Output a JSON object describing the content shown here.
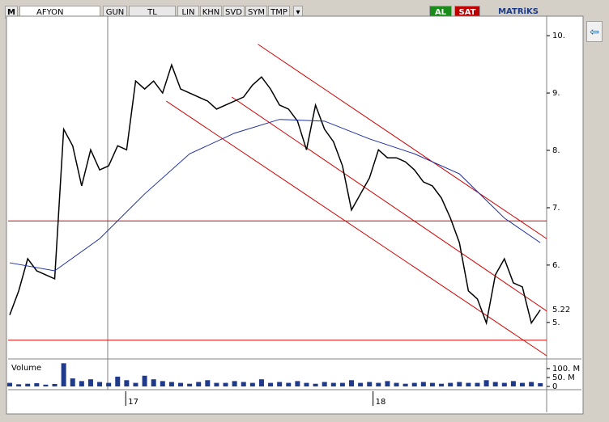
{
  "toolbar": {
    "symbol_mark": "M",
    "symbol": "AFYON",
    "period": "GUN",
    "currency": "TL",
    "buttons": [
      "LIN",
      "KHN",
      "SVD",
      "SYM",
      "TMP"
    ],
    "buy": "AL",
    "sell": "SAT",
    "brand": "MATRiKS"
  },
  "chart_data": [
    {
      "type": "line",
      "x": [
        0,
        1,
        2,
        3,
        4,
        5,
        6,
        7,
        8,
        9,
        10,
        11,
        12,
        13,
        14,
        15,
        16,
        17,
        18,
        19,
        20,
        21,
        22,
        23,
        24,
        25,
        26,
        27,
        28,
        29,
        30,
        31,
        32,
        33,
        34,
        35,
        36,
        37,
        38,
        39,
        40,
        41,
        42,
        43,
        44,
        45,
        46,
        47,
        48,
        49,
        50,
        51,
        52,
        53,
        54,
        55,
        56,
        57,
        58,
        59
      ],
      "xlim": [
        -0.18,
        59.7
      ],
      "xticks": [
        {
          "value": 12.9,
          "label": "17"
        },
        {
          "value": 40.4,
          "label": "18"
        }
      ],
      "ylim": [
        4.42,
        10.34
      ],
      "yticks": [
        {
          "value": 5,
          "label": "5."
        },
        {
          "value": 6,
          "label": "6."
        },
        {
          "value": 7,
          "label": "7."
        },
        {
          "value": 8,
          "label": "8."
        },
        {
          "value": 9,
          "label": "9."
        },
        {
          "value": 10,
          "label": "10."
        }
      ],
      "series": [
        {
          "color": "#000000",
          "values": [
            5.13,
            5.55,
            6.11,
            5.9,
            5.83,
            5.76,
            8.37,
            8.08,
            7.38,
            8.01,
            7.66,
            7.73,
            8.08,
            8.01,
            9.21,
            9.07,
            9.21,
            9.0,
            9.49,
            9.07,
            9.0,
            8.93,
            8.86,
            8.72,
            8.79,
            8.86,
            8.93,
            9.14,
            9.28,
            9.07,
            8.79,
            8.72,
            8.51,
            8.01,
            8.79,
            8.37,
            8.15,
            7.73,
            6.96,
            7.24,
            7.52,
            8.01,
            7.87,
            7.87,
            7.8,
            7.66,
            7.45,
            7.38,
            7.17,
            6.82,
            6.39,
            5.55,
            5.41,
            4.99,
            5.83,
            6.11,
            5.69,
            5.62,
            4.99,
            5.22
          ]
        },
        {
          "color": "#1f2fa0",
          "x": [
            0,
            5,
            10,
            15,
            20,
            25,
            30,
            35,
            40,
            45,
            50,
            55,
            59
          ],
          "values": [
            6.04,
            5.9,
            6.46,
            7.24,
            7.94,
            8.3,
            8.54,
            8.51,
            8.2,
            7.94,
            7.59,
            6.82,
            6.39
          ]
        }
      ],
      "hlines": [
        6.77,
        4.69
      ],
      "trend_lines": [
        {
          "x": [
            27.6,
            59.7
          ],
          "values": [
            9.85,
            6.46
          ]
        },
        {
          "x": [
            24.7,
            59.7
          ],
          "values": [
            8.93,
            5.2
          ]
        },
        {
          "x": [
            17.4,
            59.7
          ],
          "values": [
            8.86,
            4.42
          ]
        }
      ],
      "line_color": "#d00000",
      "last_price": 5.22
    },
    {
      "type": "bar",
      "title": "Volume",
      "color": "#1f3a8a",
      "values": [
        20000000,
        12000000,
        15000000,
        18000000,
        10000000,
        14000000,
        130000000,
        45000000,
        30000000,
        40000000,
        25000000,
        20000000,
        55000000,
        35000000,
        20000000,
        60000000,
        40000000,
        30000000,
        25000000,
        20000000,
        15000000,
        25000000,
        35000000,
        20000000,
        20000000,
        30000000,
        25000000,
        20000000,
        40000000,
        20000000,
        25000000,
        20000000,
        30000000,
        20000000,
        15000000,
        25000000,
        20000000,
        20000000,
        35000000,
        20000000,
        25000000,
        20000000,
        30000000,
        20000000,
        15000000,
        20000000,
        25000000,
        20000000,
        15000000,
        20000000,
        25000000,
        20000000,
        20000000,
        35000000,
        25000000,
        20000000,
        30000000,
        20000000,
        25000000,
        18000000
      ],
      "ylim": [
        0,
        136000000
      ],
      "yticks": [
        {
          "value": 0,
          "label": "0"
        },
        {
          "value": 50000000,
          "label": "50. M"
        },
        {
          "value": 100000000,
          "label": "100. M"
        }
      ]
    }
  ]
}
